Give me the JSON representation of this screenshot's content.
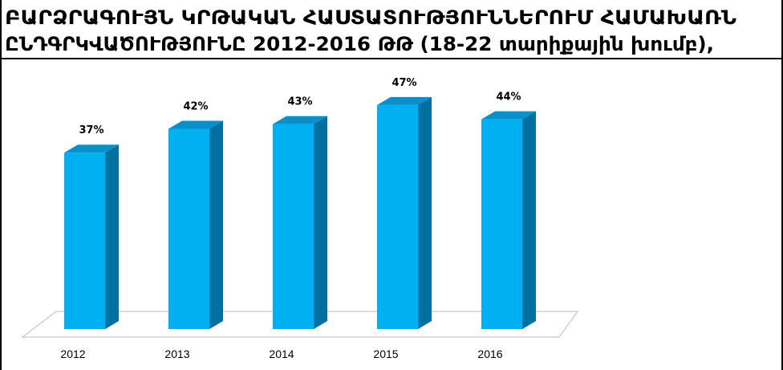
{
  "chart_data": {
    "type": "bar3d",
    "title": [
      "ԲԱՐՁՐԱԳՈՒՅՆ ԿՐԹԱԿԱՆ ՀԱՍՏԱՏՈՒԹՅՈՒՆՆԵՐՈՒՄ ՀԱՄԱԽԱՌՆ",
      "ԸՆԴԳՐԿՎԱԾՈՒԹՅՈՒՆԸ 2012-2016 ԹԹ (18-22 տարիքային խումբ),"
    ],
    "categories": [
      "2012",
      "2013",
      "2014",
      "2015",
      "2016"
    ],
    "values": [
      37,
      42,
      43,
      47,
      44
    ],
    "value_labels": [
      "37%",
      "42%",
      "43%",
      "47%",
      "44%"
    ],
    "color": "#00b0f0"
  }
}
